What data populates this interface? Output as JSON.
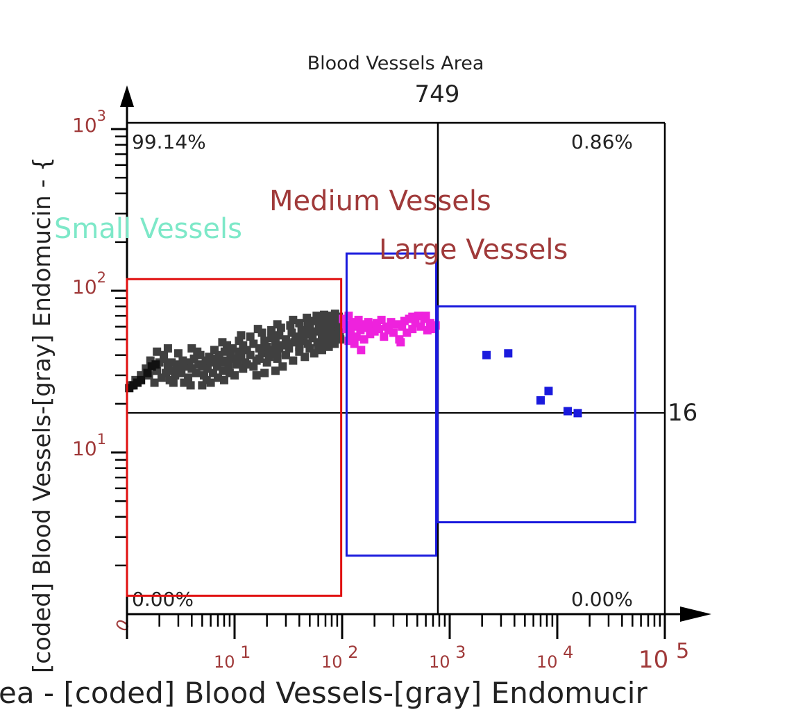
{
  "chart_data": {
    "type": "scatter",
    "title": "Blood Vessels Area",
    "x_divider_label": "749",
    "y_divider_label": "16",
    "xlabel": "ea - [coded] Blood Vessels-[gray] Endomucir",
    "ylabel": "[coded] Blood Vessels-[gray] Endomucin - {",
    "x_scale": "log",
    "y_scale": "log",
    "xlim": [
      1,
      100000
    ],
    "ylim": [
      1,
      1000
    ],
    "x_ticks": [
      {
        "base": "10",
        "exp": "1",
        "value": 10
      },
      {
        "base": "10",
        "exp": "2",
        "value": 100
      },
      {
        "base": "10",
        "exp": "3",
        "value": 1000
      },
      {
        "base": "10",
        "exp": "4",
        "value": 10000
      },
      {
        "base": "10",
        "exp": "5",
        "value": 100000
      }
    ],
    "y_ticks": [
      {
        "base": "10",
        "exp": "1",
        "value": 10
      },
      {
        "base": "10",
        "exp": "2",
        "value": 100
      },
      {
        "base": "10",
        "exp": "3",
        "value": 1000
      }
    ],
    "y_zero_label": "0",
    "quadrants": {
      "upper_left": "99.14%",
      "upper_right": "0.86%",
      "lower_left": "0.00%",
      "lower_right": "0.00%"
    },
    "gates": [
      {
        "name": "Small Vessels",
        "x": [
          1,
          98
        ],
        "y": [
          1.3,
          118
        ],
        "color": "#e01010",
        "label_color": "#7de8c8"
      },
      {
        "name": "Medium Vessels",
        "x": [
          110,
          749
        ],
        "y": [
          2.3,
          170
        ],
        "color": "#1a1add",
        "label_color": "#a03a3a"
      },
      {
        "name": "Large Vessels",
        "x": [
          770,
          53000
        ],
        "y": [
          3.7,
          80
        ],
        "color": "#1a1add",
        "label_color": "#a03a3a"
      }
    ],
    "series": [
      {
        "color": "#404040",
        "points": [
          [
            1.1,
            26
          ],
          [
            1.2,
            28
          ],
          [
            1.35,
            30
          ],
          [
            1.5,
            33
          ],
          [
            1.6,
            30
          ],
          [
            1.65,
            37
          ],
          [
            1.8,
            27
          ],
          [
            1.9,
            32
          ],
          [
            2.0,
            36
          ],
          [
            2.1,
            29
          ],
          [
            2.2,
            38
          ],
          [
            2.3,
            31
          ],
          [
            2.4,
            34
          ],
          [
            2.5,
            28
          ],
          [
            2.6,
            36
          ],
          [
            2.7,
            32
          ],
          [
            2.8,
            30
          ],
          [
            2.9,
            35
          ],
          [
            3.0,
            33
          ],
          [
            3.2,
            31
          ],
          [
            3.3,
            37
          ],
          [
            3.5,
            34
          ],
          [
            3.7,
            29
          ],
          [
            3.8,
            36
          ],
          [
            4.0,
            33
          ],
          [
            4.2,
            38
          ],
          [
            4.4,
            31
          ],
          [
            4.6,
            35
          ],
          [
            4.8,
            40
          ],
          [
            5.0,
            34
          ],
          [
            5.2,
            30
          ],
          [
            5.4,
            37
          ],
          [
            5.6,
            33
          ],
          [
            5.8,
            39
          ],
          [
            6.0,
            36
          ],
          [
            6.3,
            31
          ],
          [
            6.6,
            38
          ],
          [
            6.9,
            34
          ],
          [
            7.2,
            40
          ],
          [
            7.5,
            36
          ],
          [
            7.8,
            32
          ],
          [
            8.1,
            42
          ],
          [
            8.4,
            37
          ],
          [
            8.8,
            34
          ],
          [
            9.2,
            40
          ],
          [
            9.6,
            44
          ],
          [
            10,
            38
          ],
          [
            10.5,
            35
          ],
          [
            11,
            42
          ],
          [
            11.5,
            39
          ],
          [
            12,
            46
          ],
          [
            12.5,
            36
          ],
          [
            13,
            43
          ],
          [
            14,
            40
          ],
          [
            15,
            47
          ],
          [
            16,
            37
          ],
          [
            17,
            44
          ],
          [
            18,
            41
          ],
          [
            19,
            49
          ],
          [
            20,
            45
          ],
          [
            21,
            39
          ],
          [
            22,
            51
          ],
          [
            23,
            43
          ],
          [
            24,
            48
          ],
          [
            25,
            41
          ],
          [
            26,
            53
          ],
          [
            28,
            46
          ],
          [
            30,
            50
          ],
          [
            32,
            44
          ],
          [
            34,
            55
          ],
          [
            36,
            48
          ],
          [
            38,
            52
          ],
          [
            40,
            45
          ],
          [
            42,
            57
          ],
          [
            44,
            49
          ],
          [
            46,
            54
          ],
          [
            48,
            47
          ],
          [
            50,
            59
          ],
          [
            53,
            51
          ],
          [
            56,
            56
          ],
          [
            59,
            48
          ],
          [
            62,
            60
          ],
          [
            65,
            53
          ],
          [
            68,
            57
          ],
          [
            71,
            50
          ],
          [
            74,
            62
          ],
          [
            77,
            55
          ],
          [
            80,
            59
          ],
          [
            83,
            52
          ],
          [
            86,
            63
          ],
          [
            89,
            56
          ],
          [
            92,
            60
          ],
          [
            95,
            54
          ],
          [
            97,
            58
          ],
          [
            3.4,
            27
          ],
          [
            5.5,
            28
          ],
          [
            7.0,
            29
          ],
          [
            9.0,
            31
          ],
          [
            12,
            33
          ],
          [
            15,
            34
          ],
          [
            20,
            36
          ],
          [
            25,
            38
          ],
          [
            30,
            40
          ],
          [
            40,
            42
          ],
          [
            50,
            44
          ],
          [
            60,
            46
          ],
          [
            70,
            48
          ],
          [
            80,
            50
          ],
          [
            90,
            52
          ],
          [
            4.5,
            42
          ],
          [
            6.5,
            43
          ],
          [
            8.5,
            46
          ],
          [
            11,
            49
          ],
          [
            14,
            52
          ],
          [
            18,
            55
          ],
          [
            22,
            57
          ],
          [
            27,
            59
          ],
          [
            33,
            61
          ],
          [
            40,
            63
          ],
          [
            48,
            64
          ],
          [
            56,
            65
          ],
          [
            64,
            66
          ],
          [
            72,
            67
          ],
          [
            80,
            68
          ],
          [
            88,
            69
          ],
          [
            2.2,
            40
          ],
          [
            3.0,
            41
          ],
          [
            4.0,
            44
          ],
          [
            10,
            30
          ],
          [
            13,
            35
          ],
          [
            17,
            38
          ],
          [
            21,
            41
          ],
          [
            26,
            44
          ],
          [
            31,
            47
          ],
          [
            37,
            50
          ],
          [
            43,
            53
          ],
          [
            52,
            55
          ],
          [
            61,
            58
          ],
          [
            70,
            61
          ],
          [
            79,
            63
          ],
          [
            88,
            65
          ],
          [
            95,
            64
          ],
          [
            96,
            50
          ],
          [
            85,
            47
          ],
          [
            75,
            45
          ],
          [
            65,
            43
          ],
          [
            55,
            41
          ],
          [
            45,
            39
          ],
          [
            35,
            37
          ],
          [
            28,
            34
          ],
          [
            24,
            32
          ],
          [
            19,
            31
          ],
          [
            16,
            30
          ],
          [
            8,
            28
          ],
          [
            6,
            27
          ],
          [
            5,
            26
          ],
          [
            3.9,
            26
          ],
          [
            2.7,
            27
          ],
          [
            2.4,
            44
          ],
          [
            1.9,
            42
          ],
          [
            7.7,
            48
          ],
          [
            11.5,
            53
          ],
          [
            16.5,
            58
          ],
          [
            25,
            62
          ],
          [
            35,
            66
          ],
          [
            47,
            68
          ],
          [
            58,
            70
          ],
          [
            68,
            71
          ],
          [
            78,
            70
          ],
          [
            86,
            72
          ],
          [
            93,
            69
          ]
        ]
      },
      {
        "color": "#111111",
        "points": [
          [
            1.05,
            25
          ],
          [
            1.15,
            26
          ],
          [
            1.25,
            27
          ],
          [
            1.35,
            28
          ],
          [
            1.55,
            31
          ],
          [
            1.7,
            34
          ],
          [
            1.85,
            35
          ]
        ]
      },
      {
        "color": "#ee22dd",
        "points": [
          [
            102,
            67
          ],
          [
            106,
            62
          ],
          [
            110,
            58
          ],
          [
            115,
            70
          ],
          [
            120,
            55
          ],
          [
            125,
            64
          ],
          [
            130,
            60
          ],
          [
            136,
            52
          ],
          [
            142,
            66
          ],
          [
            148,
            57
          ],
          [
            150,
            43
          ],
          [
            155,
            62
          ],
          [
            160,
            50
          ],
          [
            168,
            59
          ],
          [
            175,
            64
          ],
          [
            182,
            54
          ],
          [
            190,
            61
          ],
          [
            200,
            56
          ],
          [
            210,
            63
          ],
          [
            220,
            58
          ],
          [
            232,
            66
          ],
          [
            245,
            52
          ],
          [
            258,
            60
          ],
          [
            270,
            57
          ],
          [
            285,
            64
          ],
          [
            300,
            55
          ],
          [
            320,
            62
          ],
          [
            340,
            50
          ],
          [
            360,
            60
          ],
          [
            380,
            65
          ],
          [
            400,
            55
          ],
          [
            420,
            67
          ],
          [
            450,
            58
          ],
          [
            480,
            63
          ],
          [
            510,
            70
          ],
          [
            540,
            60
          ],
          [
            580,
            67
          ],
          [
            620,
            57
          ],
          [
            660,
            63
          ],
          [
            700,
            58
          ],
          [
            740,
            61
          ],
          [
            115,
            49
          ],
          [
            130,
            47
          ],
          [
            350,
            48
          ],
          [
            450,
            69
          ],
          [
            600,
            70
          ]
        ]
      },
      {
        "color": "#1a1add",
        "points": [
          [
            2200,
            40
          ],
          [
            3500,
            41
          ],
          [
            7000,
            21
          ],
          [
            8300,
            24
          ],
          [
            12500,
            18
          ],
          [
            15500,
            17.5
          ]
        ]
      }
    ]
  }
}
